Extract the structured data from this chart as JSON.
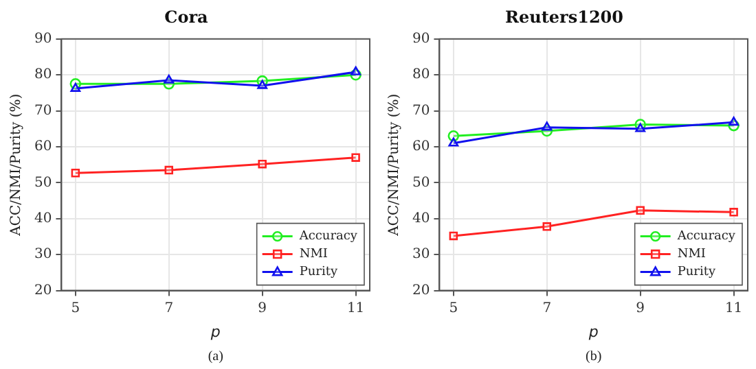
{
  "chart_data": [
    {
      "type": "line",
      "title": "Cora",
      "xlabel": "p",
      "ylabel": "ACC/NMI/Purity (%)",
      "x": [
        5,
        7,
        9,
        11
      ],
      "xlim": [
        4.7,
        11.3
      ],
      "xticks": [
        5,
        7,
        9,
        11
      ],
      "ylim": [
        20,
        90
      ],
      "yticks": [
        20,
        30,
        40,
        50,
        60,
        70,
        80,
        90
      ],
      "grid": true,
      "legend": "bottom right",
      "annotations": [
        "(a)"
      ],
      "series": [
        {
          "name": "Accuracy",
          "color": "#22ee22",
          "marker": "circle",
          "values": [
            77.5,
            77.5,
            78.3,
            80.0
          ]
        },
        {
          "name": "NMI",
          "color": "#ff2222",
          "marker": "square",
          "values": [
            52.7,
            53.5,
            55.2,
            57.0
          ]
        },
        {
          "name": "Purity",
          "color": "#1111ee",
          "marker": "triangle",
          "values": [
            76.2,
            78.5,
            77.0,
            80.8
          ]
        }
      ]
    },
    {
      "type": "line",
      "title": "Reuters1200",
      "xlabel": "p",
      "ylabel": "ACC/NMI/Purity (%)",
      "x": [
        5,
        7,
        9,
        11
      ],
      "xlim": [
        4.7,
        11.3
      ],
      "xticks": [
        5,
        7,
        9,
        11
      ],
      "ylim": [
        20,
        90
      ],
      "yticks": [
        20,
        30,
        40,
        50,
        60,
        70,
        80,
        90
      ],
      "grid": true,
      "legend": "bottom right",
      "annotations": [
        "(b)"
      ],
      "series": [
        {
          "name": "Accuracy",
          "color": "#22ee22",
          "marker": "circle",
          "values": [
            63.0,
            64.4,
            66.2,
            65.9
          ]
        },
        {
          "name": "NMI",
          "color": "#ff2222",
          "marker": "square",
          "values": [
            35.2,
            37.8,
            42.3,
            41.8
          ]
        },
        {
          "name": "Purity",
          "color": "#1111ee",
          "marker": "triangle",
          "values": [
            61.0,
            65.4,
            65.0,
            66.8
          ]
        }
      ]
    }
  ]
}
